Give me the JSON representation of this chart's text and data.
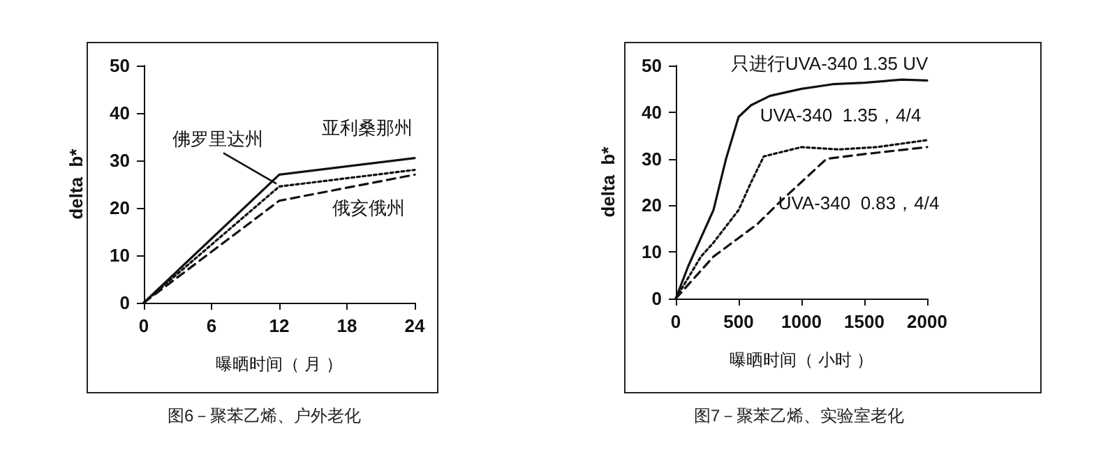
{
  "chart_data": [
    {
      "type": "line",
      "xlabel": "曝晒时间（ 月 ）",
      "ylabel": "delta  b*",
      "annotations": [
        "图6－聚苯乙烯、户外老化"
      ],
      "x": [
        0,
        12,
        24
      ],
      "xlim": [
        0,
        24
      ],
      "xticks": [
        0,
        6,
        12,
        18,
        24
      ],
      "ylim": [
        0,
        50
      ],
      "yticks": [
        0,
        10,
        20,
        30,
        40,
        50
      ],
      "grid": false,
      "legend": false,
      "marker": "none",
      "series": [
        {
          "name": "亚利桑那州",
          "color": "#111111",
          "line_style": "solid",
          "values": [
            0,
            27,
            30.5
          ]
        },
        {
          "name": "佛罗里达州",
          "color": "#111111",
          "line_style": "dotted",
          "values": [
            0,
            24.5,
            28
          ]
        },
        {
          "name": "俄亥俄州",
          "color": "#111111",
          "line_style": "dashed",
          "values": [
            0,
            21.5,
            27
          ]
        }
      ]
    },
    {
      "type": "line",
      "xlabel": "曝晒时间（ 小时 ）",
      "ylabel": "delta  b*",
      "annotations": [
        "图7－聚苯乙烯、实验室老化"
      ],
      "xlim": [
        0,
        2000
      ],
      "xticks": [
        0,
        500,
        1000,
        1500,
        2000
      ],
      "ylim": [
        0,
        50
      ],
      "yticks": [
        0,
        10,
        20,
        30,
        40,
        50
      ],
      "grid": false,
      "legend": false,
      "marker": "none",
      "series": [
        {
          "name": "只进行UVA-340 1.35 UV",
          "color": "#111111",
          "line_style": "solid",
          "x": [
            0,
            100,
            200,
            300,
            400,
            500,
            600,
            750,
            1000,
            1250,
            1500,
            1800,
            2000
          ],
          "values": [
            0,
            7,
            13,
            19,
            30,
            39,
            41.5,
            43.5,
            45,
            46,
            46.3,
            47,
            46.8
          ]
        },
        {
          "name": "UVA-340  1.35，4/4",
          "color": "#111111",
          "line_style": "dotted",
          "x": [
            0,
            200,
            300,
            400,
            500,
            600,
            700,
            1000,
            1300,
            1600,
            2000
          ],
          "values": [
            0,
            9,
            12,
            15.5,
            19,
            25,
            30.5,
            32.5,
            32,
            32.5,
            34
          ]
        },
        {
          "name": "UVA-340  0.83，4/4",
          "color": "#111111",
          "line_style": "dashed",
          "x": [
            0,
            300,
            500,
            650,
            800,
            1000,
            1200,
            1500,
            2000
          ],
          "values": [
            0,
            9,
            13,
            16,
            20,
            25,
            30,
            31,
            32.5
          ]
        }
      ]
    }
  ]
}
